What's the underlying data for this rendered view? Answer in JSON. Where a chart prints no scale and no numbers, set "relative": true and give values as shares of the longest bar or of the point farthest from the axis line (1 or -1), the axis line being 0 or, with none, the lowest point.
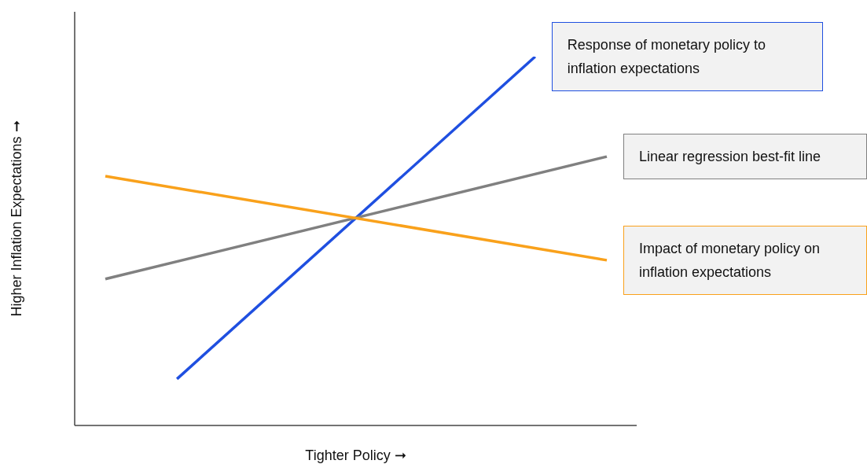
{
  "chart_data": {
    "type": "line",
    "xlabel": "Tighter Policy ➞",
    "ylabel": "Higher Inflation Expectations ➞",
    "relative": true,
    "marker": "none",
    "categories": [
      null,
      null,
      null,
      null,
      null,
      null,
      null,
      null
    ],
    "series": [
      {
        "name": "Response of monetary policy to inflation expectations",
        "color": "#1f4fe0",
        "values": [
          null,
          0.126,
          null,
          null,
          null,
          null,
          1.0,
          null
        ]
      },
      {
        "name": "Linear regression best-fit line",
        "color": "#808080",
        "values": [
          0.397,
          null,
          null,
          null,
          null,
          null,
          null,
          0.729
        ]
      },
      {
        "name": "Impact of monetary policy on inflation expectations",
        "color": "#f9a11b",
        "values": [
          0.676,
          null,
          null,
          null,
          null,
          null,
          null,
          0.448
        ]
      }
    ]
  }
}
